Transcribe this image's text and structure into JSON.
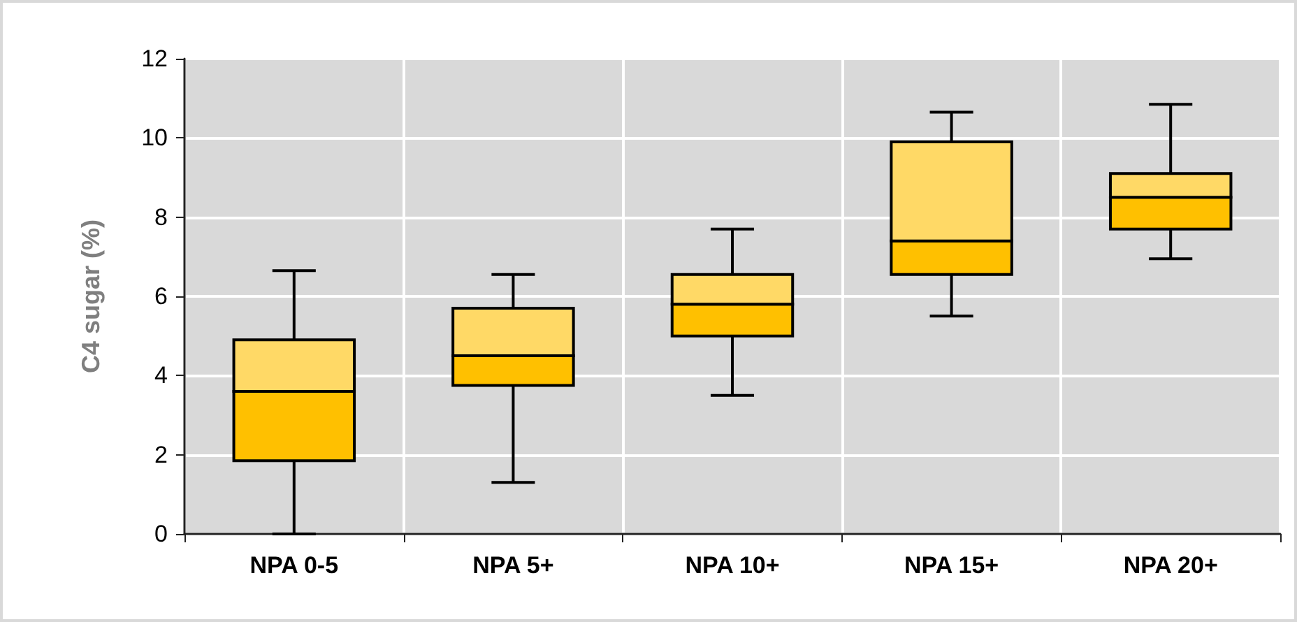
{
  "chart_data": {
    "type": "box",
    "ylabel": "C4 sugar (%)",
    "categories": [
      "NPA 0-5",
      "NPA 5+",
      "NPA 10+",
      "NPA 15+",
      "NPA 20+"
    ],
    "series": [
      {
        "color": "#ffc000",
        "boxes": [
          {
            "low": 0,
            "q1": 1.85,
            "median": 3.6,
            "q3": 4.9,
            "high": 6.65
          },
          {
            "low": 1.3,
            "q1": 3.75,
            "median": 4.5,
            "q3": 5.7,
            "high": 6.55
          },
          {
            "low": 3.5,
            "q1": 5.0,
            "median": 5.8,
            "q3": 6.55,
            "high": 7.7
          },
          {
            "low": 5.5,
            "q1": 6.55,
            "median": 7.4,
            "q3": 9.9,
            "high": 10.65
          },
          {
            "low": 6.95,
            "q1": 7.7,
            "median": 8.5,
            "q3": 9.1,
            "high": 10.85
          }
        ]
      }
    ],
    "ylim": [
      0,
      12
    ],
    "yticks": [
      0,
      2,
      4,
      6,
      8,
      10,
      12
    ],
    "grid": true
  }
}
